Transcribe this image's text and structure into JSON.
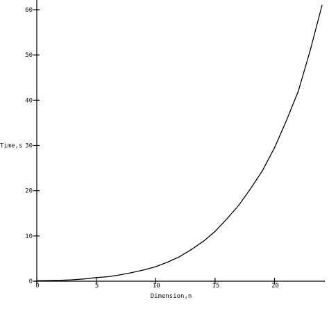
{
  "chart_data": {
    "type": "line",
    "xlabel": "Dimension,n",
    "ylabel": "Time,s",
    "xlim": [
      0,
      24
    ],
    "ylim": [
      0,
      60
    ],
    "grid": false,
    "x_ticks": [
      0,
      5,
      10,
      15,
      20
    ],
    "x_tick_labels": [
      "0",
      "5",
      "10",
      "15",
      "20"
    ],
    "y_ticks": [
      0,
      10,
      20,
      30,
      40,
      50,
      60
    ],
    "y_tick_labels": [
      "0",
      "10",
      "20",
      "30",
      "40",
      "50",
      "60"
    ],
    "series": [
      {
        "x": [
          0,
          1,
          2,
          3,
          4,
          5,
          6,
          7,
          8,
          9,
          10,
          11,
          12,
          13,
          14,
          15,
          16,
          17,
          18,
          19,
          20,
          21,
          22,
          23,
          24
        ],
        "y": [
          0.1,
          0.15,
          0.2,
          0.3,
          0.5,
          0.8,
          1.0,
          1.4,
          1.9,
          2.5,
          3.2,
          4.2,
          5.4,
          7.0,
          8.8,
          11.0,
          13.8,
          16.8,
          20.5,
          24.5,
          29.5,
          35.5,
          42.0,
          51.0,
          61.0
        ]
      }
    ]
  }
}
